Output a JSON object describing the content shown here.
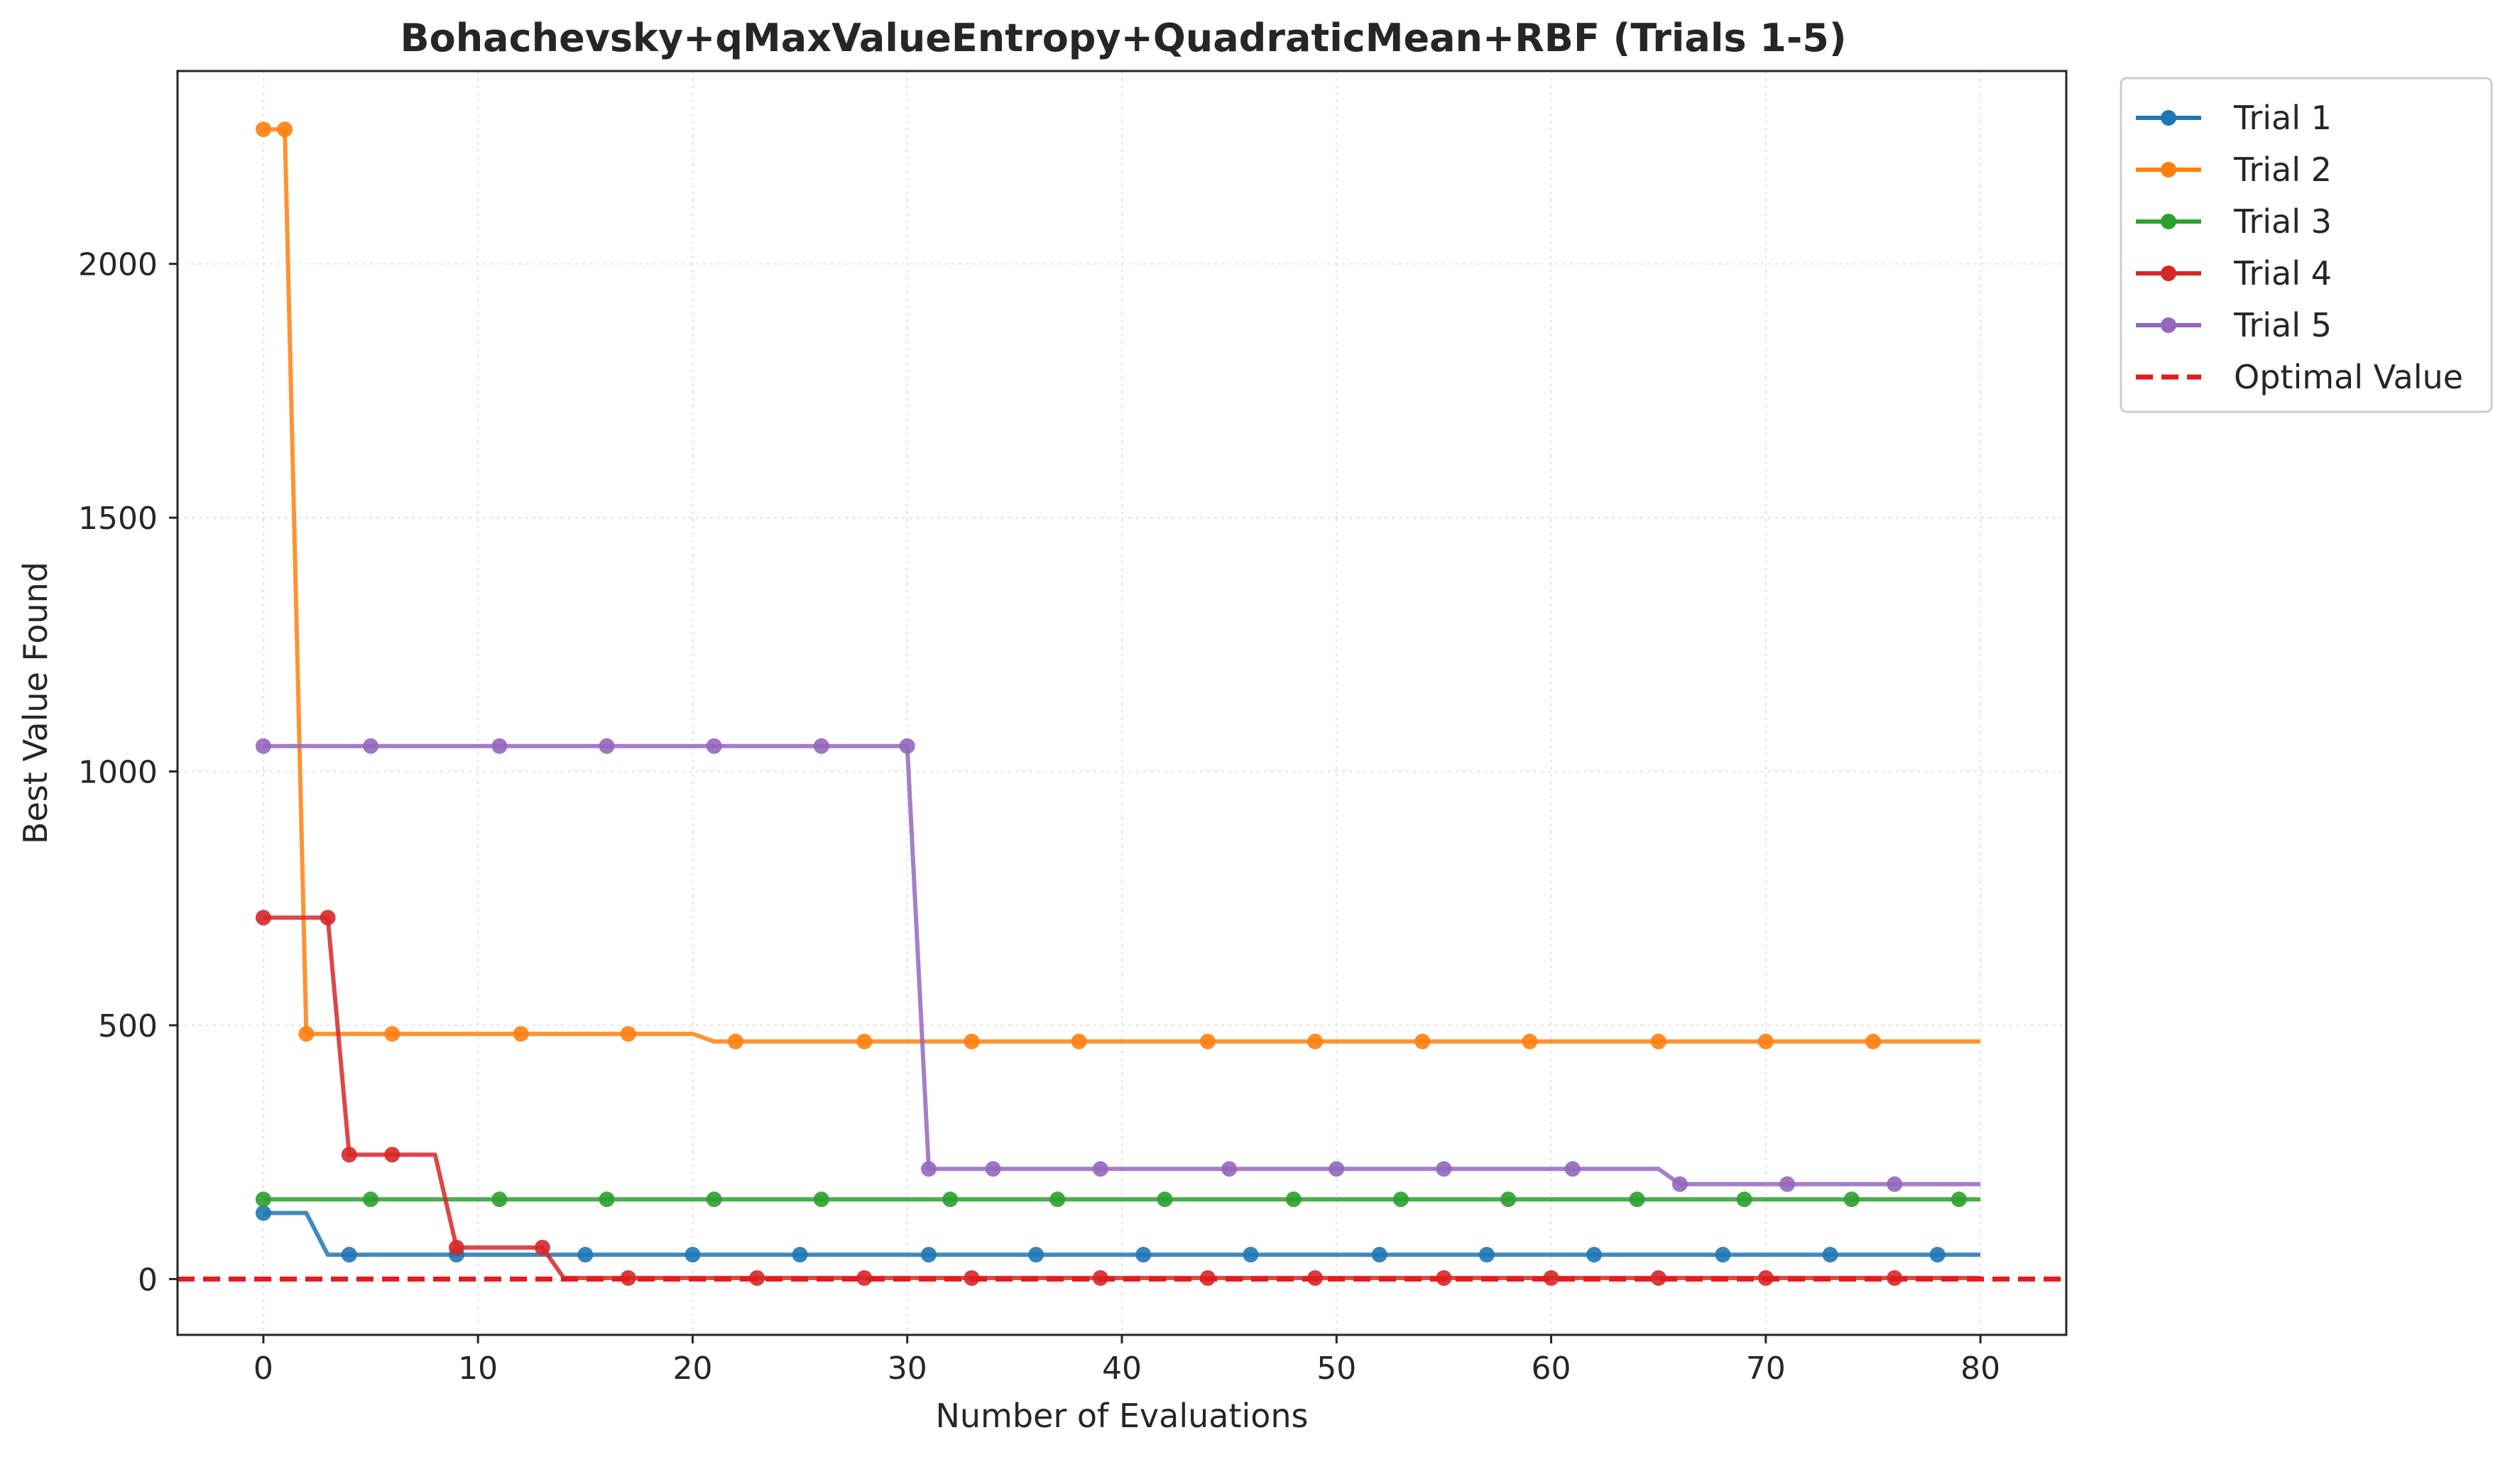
{
  "chart_data": {
    "type": "line",
    "title": "Bohachevsky+qMaxValueEntropy+QuadraticMean+RBF (Trials 1-5)",
    "xlabel": "Number of Evaluations",
    "ylabel": "Best Value Found",
    "xlim": [
      -4,
      84
    ],
    "ylim": [
      -110,
      2380
    ],
    "xticks": [
      0,
      10,
      20,
      30,
      40,
      50,
      60,
      70,
      80
    ],
    "yticks": [
      0,
      500,
      1000,
      1500,
      2000
    ],
    "grid": true,
    "legend_position": "outside-top-right",
    "series": [
      {
        "name": "Trial 1",
        "color": "#1f77b4",
        "points": [
          [
            0,
            130
          ],
          [
            2,
            130
          ],
          [
            3,
            48
          ],
          [
            80,
            48
          ]
        ],
        "markers_x": [
          0,
          4,
          9,
          15,
          20,
          25,
          31,
          36,
          41,
          46,
          52,
          57,
          62,
          68,
          73,
          78
        ]
      },
      {
        "name": "Trial 2",
        "color": "#ff7f0e",
        "points": [
          [
            0,
            2265
          ],
          [
            1,
            2265
          ],
          [
            2,
            483
          ],
          [
            20,
            483
          ],
          [
            21,
            468
          ],
          [
            80,
            468
          ]
        ],
        "markers_x": [
          0,
          1,
          2,
          6,
          12,
          17,
          22,
          28,
          33,
          38,
          44,
          49,
          54,
          59,
          65,
          70,
          75
        ]
      },
      {
        "name": "Trial 3",
        "color": "#2ca02c",
        "points": [
          [
            0,
            157
          ],
          [
            80,
            157
          ]
        ],
        "markers_x": [
          0,
          5,
          11,
          16,
          21,
          26,
          32,
          37,
          42,
          48,
          53,
          58,
          64,
          69,
          74,
          79
        ]
      },
      {
        "name": "Trial 4",
        "color": "#d62728",
        "points": [
          [
            0,
            712
          ],
          [
            3,
            712
          ],
          [
            4,
            245
          ],
          [
            8,
            245
          ],
          [
            9,
            62
          ],
          [
            13,
            62
          ],
          [
            14,
            2
          ],
          [
            80,
            2
          ]
        ],
        "markers_x": [
          0,
          3,
          4,
          6,
          9,
          13,
          17,
          23,
          28,
          33,
          39,
          44,
          49,
          55,
          60,
          65,
          70,
          76
        ]
      },
      {
        "name": "Trial 5",
        "color": "#9467bd",
        "points": [
          [
            0,
            1050
          ],
          [
            30,
            1050
          ],
          [
            31,
            217
          ],
          [
            65,
            217
          ],
          [
            66,
            187
          ],
          [
            80,
            187
          ]
        ],
        "markers_x": [
          0,
          5,
          11,
          16,
          21,
          26,
          30,
          31,
          34,
          39,
          45,
          50,
          55,
          61,
          66,
          71,
          76
        ]
      },
      {
        "name": "Optimal Value",
        "color": "#e41a1c",
        "style": "dashed",
        "value": 0
      }
    ]
  }
}
